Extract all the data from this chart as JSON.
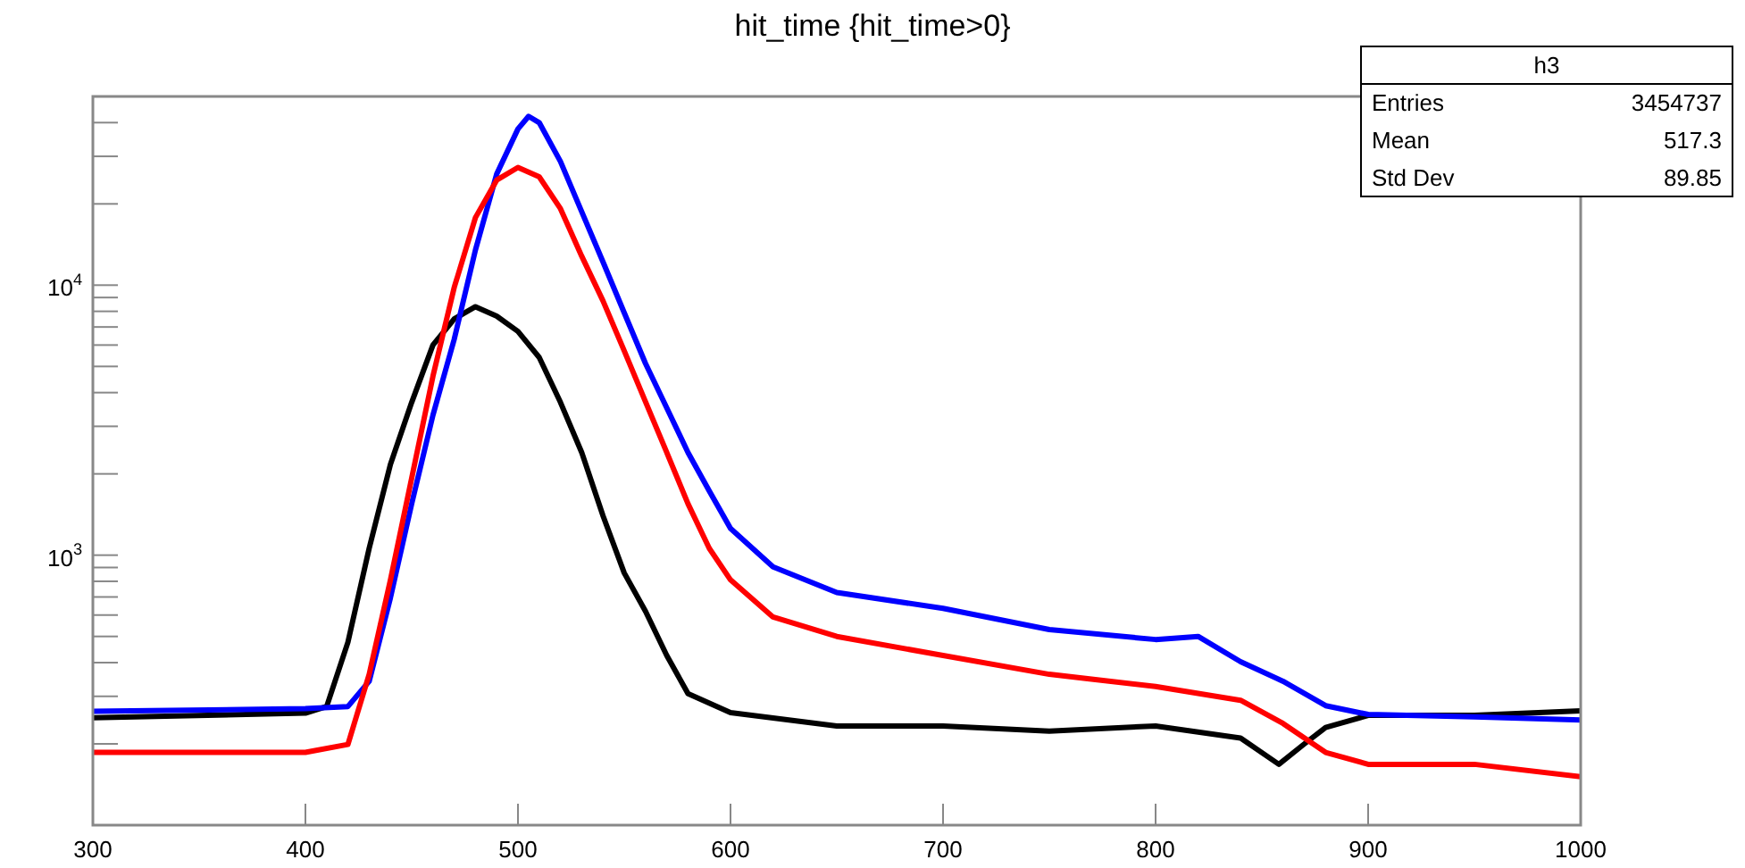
{
  "chart_data": {
    "type": "line",
    "title": "hit_time {hit_time>0}",
    "log": "y",
    "marker": "none",
    "line_style": "solid",
    "grid": false,
    "xlim": [
      300,
      1000
    ],
    "xticks": [
      300,
      400,
      500,
      600,
      700,
      800,
      900,
      1000
    ],
    "ylim": [
      100,
      50000
    ],
    "yticks": [
      {
        "value": 200,
        "label": null
      },
      {
        "value": 300,
        "label": null
      },
      {
        "value": 400,
        "label": null
      },
      {
        "value": 500,
        "label": null
      },
      {
        "value": 600,
        "label": null
      },
      {
        "value": 700,
        "label": null
      },
      {
        "value": 800,
        "label": null
      },
      {
        "value": 900,
        "label": null
      },
      {
        "value": 1000,
        "label": "10$^{3}$"
      },
      {
        "value": 2000,
        "label": null
      },
      {
        "value": 3000,
        "label": null
      },
      {
        "value": 4000,
        "label": null
      },
      {
        "value": 5000,
        "label": null
      },
      {
        "value": 6000,
        "label": null
      },
      {
        "value": 7000,
        "label": null
      },
      {
        "value": 8000,
        "label": null
      },
      {
        "value": 9000,
        "label": null
      },
      {
        "value": 10000,
        "label": "10$^{4}$"
      },
      {
        "value": 20000,
        "label": null
      },
      {
        "value": 30000,
        "label": null
      },
      {
        "value": 40000,
        "label": null
      }
    ],
    "annotations": [
      "h3",
      "Entries 3454737",
      "Mean 517.3",
      "Std Dev 89.85"
    ],
    "series": [
      {
        "color": "#000000",
        "x": [
          300,
          400,
          410,
          420,
          430,
          440,
          450,
          460,
          470,
          480,
          490,
          500,
          510,
          520,
          530,
          540,
          550,
          560,
          570,
          580,
          600,
          650,
          700,
          750,
          800,
          840,
          858,
          870,
          880,
          900,
          950,
          1000
        ],
        "values": [
          250,
          260,
          275,
          476,
          1060,
          2170,
          3680,
          6000,
          7500,
          8320,
          7680,
          6740,
          5400,
          3680,
          2400,
          1400,
          859,
          620,
          425,
          307,
          261,
          233,
          233,
          223,
          233,
          210,
          168,
          200,
          230,
          255,
          255,
          265
        ]
      },
      {
        "color": "#0000ff",
        "x": [
          300,
          400,
          420,
          430,
          440,
          450,
          460,
          470,
          480,
          490,
          500,
          505,
          510,
          520,
          530,
          540,
          550,
          560,
          570,
          580,
          590,
          600,
          620,
          650,
          700,
          750,
          800,
          820,
          840,
          860,
          880,
          900,
          950,
          1000
        ],
        "values": [
          264,
          270,
          275,
          341,
          695,
          1550,
          3300,
          6300,
          13500,
          25800,
          37900,
          42200,
          40000,
          28700,
          18700,
          12200,
          7900,
          5130,
          3510,
          2400,
          1730,
          1255,
          905,
          727,
          635,
          530,
          487,
          500,
          403,
          341,
          277,
          257,
          252,
          245
        ]
      },
      {
        "color": "#ff0000",
        "x": [
          300,
          400,
          420,
          430,
          440,
          450,
          460,
          470,
          480,
          490,
          500,
          510,
          520,
          530,
          540,
          550,
          560,
          570,
          580,
          590,
          600,
          620,
          650,
          700,
          750,
          800,
          840,
          860,
          880,
          900,
          950,
          1000
        ],
        "values": [
          186,
          186,
          199,
          362,
          809,
          1930,
          4600,
          9800,
          17800,
          24500,
          27300,
          25200,
          19200,
          12800,
          8750,
          5710,
          3700,
          2400,
          1550,
          1060,
          810,
          590,
          500,
          425,
          362,
          326,
          290,
          238,
          186,
          168,
          168,
          151
        ]
      }
    ]
  }
}
